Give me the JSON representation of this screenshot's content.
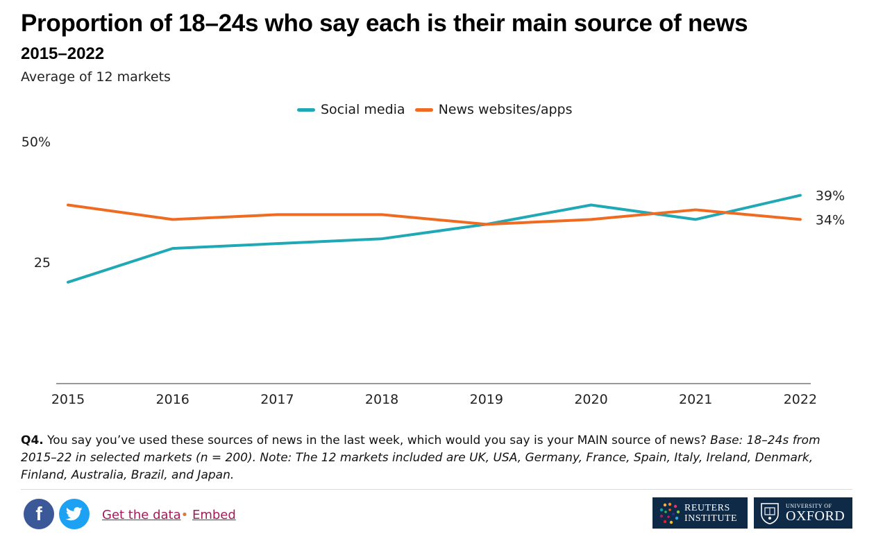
{
  "header": {
    "title": "Proportion of 18–24s who say each is their main source of news",
    "subtitle": "2015–2022",
    "note": "Average of 12 markets"
  },
  "chart_data": {
    "type": "line",
    "title": "Proportion of 18–24s who say each is their main source of news",
    "subtitle": "2015–2022",
    "x": [
      "2015",
      "2016",
      "2017",
      "2018",
      "2019",
      "2020",
      "2021",
      "2022"
    ],
    "series": [
      {
        "name": "Social media",
        "color": "#20a9b5",
        "values": [
          21,
          28,
          29,
          30,
          33,
          37,
          34,
          39
        ],
        "end_label": "39%"
      },
      {
        "name": "News websites/apps",
        "color": "#ef6b21",
        "values": [
          37,
          34,
          35,
          35,
          33,
          34,
          36,
          34
        ],
        "end_label": "34%"
      }
    ],
    "y_ticks": [
      {
        "value": 50,
        "label": "50%"
      },
      {
        "value": 25,
        "label": "25"
      }
    ],
    "ylim": [
      0,
      50
    ],
    "grid": false,
    "legend_position": "top-center",
    "xlabel": "",
    "ylabel": ""
  },
  "caption": {
    "q_label": "Q4.",
    "question": " You say you’ve used these sources of news in the last week, which would you say is your MAIN source of news? ",
    "base_note": "Base: 18–24s from 2015–22 in selected markets (n = 200). Note: The 12 markets included are UK, USA, Germany, France, Spain, Italy, Ireland, Denmark, Finland, Australia, Brazil, and Japan."
  },
  "footer": {
    "facebook_icon": "f",
    "twitter_icon": "twitter-bird",
    "get_data_label": "Get the data",
    "separator": "•",
    "embed_label": "Embed",
    "logo_reuters_line1": "REUTERS",
    "logo_reuters_line2": "INSTITUTE",
    "logo_oxford_line1": "UNIVERSITY OF",
    "logo_oxford_line2": "OXFORD"
  }
}
